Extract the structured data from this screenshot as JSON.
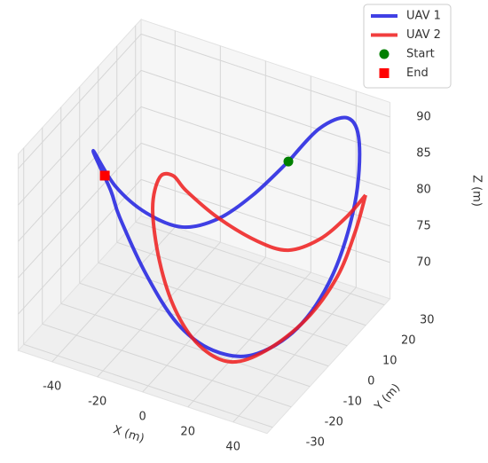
{
  "chart_data": {
    "type": "line3d",
    "xlabel": "X (m)",
    "ylabel": "Y (m)",
    "zlabel": "Z (m)",
    "xlim": [
      -55,
      55
    ],
    "ylim": [
      -33,
      33
    ],
    "zlim": [
      65,
      92
    ],
    "xticks": [
      -40,
      -20,
      0,
      20,
      40
    ],
    "yticks": [
      -30,
      -20,
      -10,
      0,
      10,
      20,
      30
    ],
    "zticks": [
      70,
      75,
      80,
      85,
      90
    ],
    "grid": true,
    "legend": "upper right",
    "series": [
      {
        "name": "UAV 1",
        "color": "#1f1fe0",
        "x": [
          23.1,
          14.7,
          3.4,
          -8.4,
          -24.9,
          -39.1,
          -48.6,
          -34.8,
          -32.5,
          -16.9,
          -0.3,
          15.5,
          30.4,
          41.7,
          46.2,
          47.5,
          47.8,
          41.0,
          32.4,
          23.1
        ],
        "y": [
          17.2,
          8.3,
          3.1,
          -1.6,
          -0.8,
          -0.1,
          -0.5,
          -7.8,
          -5.8,
          -10.4,
          -13.9,
          -14.0,
          -10.7,
          -0.6,
          12.9,
          23.2,
          25.2,
          27.3,
          22.5,
          17.2
        ],
        "z": [
          85,
          82,
          79,
          78,
          78,
          80,
          84,
          82,
          78,
          73,
          69,
          67,
          67,
          69,
          73,
          80,
          88,
          90,
          89,
          85
        ]
      },
      {
        "name": "UAV 2",
        "color": "#ee1c1c",
        "x": [
          48.4,
          49.6,
          48.3,
          44.2,
          33.5,
          22.8,
          9.6,
          -2.8,
          -14.3,
          -19.6,
          -20.1,
          -16.1,
          -9.2,
          5.1,
          21.5,
          34.8,
          44.2,
          48.7,
          48.4
        ],
        "y": [
          27.9,
          20.8,
          12.8,
          1.1,
          -7.4,
          -13.4,
          -14.0,
          -11.9,
          -6.5,
          -3.8,
          0.6,
          2.9,
          1.6,
          1.0,
          2.5,
          3.0,
          8.2,
          17.1,
          27.9
        ],
        "z": [
          80,
          77,
          73,
          70,
          67,
          66,
          67,
          70,
          74,
          80,
          83,
          83,
          82,
          80,
          78,
          78,
          79,
          80,
          80
        ]
      }
    ],
    "markers": [
      {
        "name": "Start",
        "color": "green",
        "shape": "circle",
        "x": 23.1,
        "y": 17.2,
        "z": 85
      },
      {
        "name": "End",
        "color": "red",
        "shape": "square",
        "x": -41.5,
        "y": -2.9,
        "z": 82
      }
    ]
  }
}
